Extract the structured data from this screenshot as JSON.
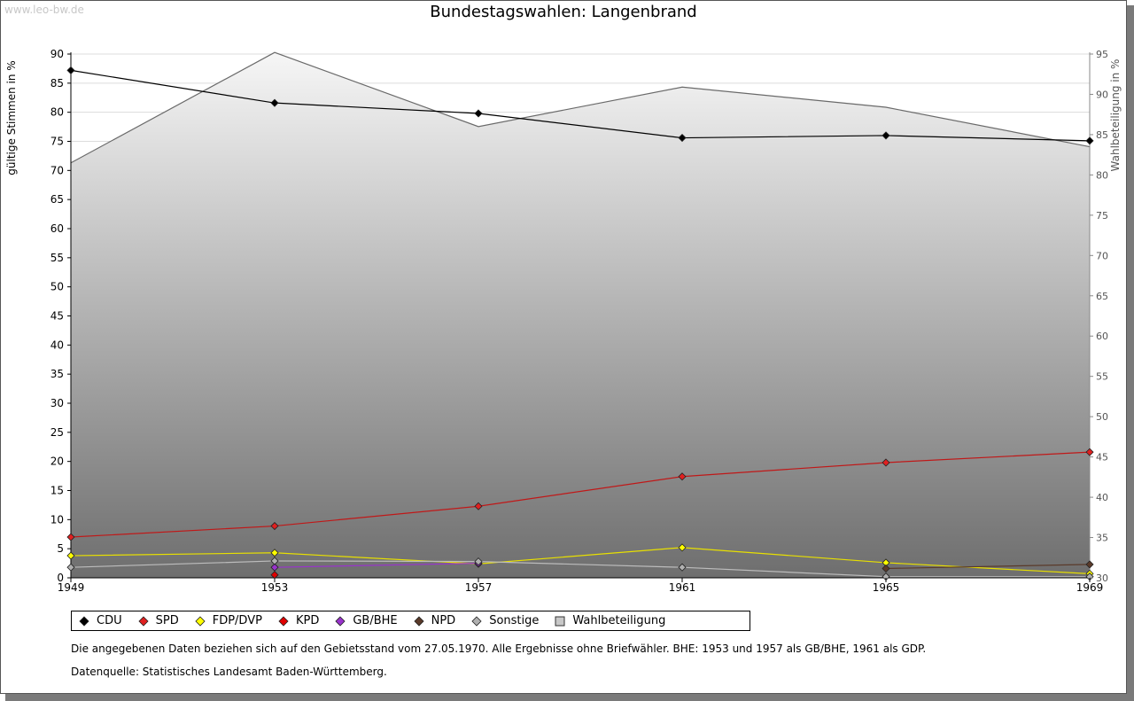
{
  "watermark": "www.leo-bw.de",
  "chart_data": {
    "type": "line",
    "title": "Bundestagswahlen: Langenbrand",
    "ylabel": "gültige Stimmen in %",
    "y2label": "Wahlbeteiligung in %",
    "categories": [
      "1949",
      "1953",
      "1957",
      "1961",
      "1965",
      "1969"
    ],
    "ylim": [
      0,
      90
    ],
    "y2lim": [
      30,
      95
    ],
    "yticks": [
      0,
      5,
      10,
      15,
      20,
      25,
      30,
      35,
      40,
      45,
      50,
      55,
      60,
      65,
      70,
      75,
      80,
      85,
      90
    ],
    "y2ticks": [
      30,
      35,
      40,
      45,
      50,
      55,
      60,
      65,
      70,
      75,
      80,
      85,
      90,
      95
    ],
    "series": [
      {
        "name": "CDU",
        "color": "#000000",
        "line": "#000000",
        "values": [
          87.2,
          81.6,
          79.8,
          75.6,
          76.0,
          75.1
        ]
      },
      {
        "name": "SPD",
        "color": "#e02020",
        "line": "#c01818",
        "values": [
          7.0,
          8.9,
          12.3,
          17.4,
          19.8,
          21.6
        ]
      },
      {
        "name": "FDP/DVP",
        "color": "#ffff00",
        "line": "#e8e000",
        "values": [
          3.8,
          4.3,
          2.4,
          5.2,
          2.6,
          0.7
        ]
      },
      {
        "name": "KPD",
        "color": "#e00000",
        "line": "#c00000",
        "values": [
          null,
          0.5,
          null,
          null,
          null,
          null
        ]
      },
      {
        "name": "GB/BHE",
        "color": "#9933cc",
        "line": "#9933cc",
        "values": [
          null,
          1.8,
          2.5,
          null,
          null,
          null
        ]
      },
      {
        "name": "NPD",
        "color": "#5a3a2a",
        "line": "#5a3a2a",
        "values": [
          null,
          null,
          null,
          null,
          1.6,
          2.3
        ]
      },
      {
        "name": "Sonstige",
        "color": "#b0b0b0",
        "line": "#bcbcbc",
        "values": [
          1.8,
          2.9,
          2.8,
          1.8,
          0.2,
          0.2
        ]
      }
    ],
    "turnout": {
      "name": "Wahlbeteiligung",
      "values": [
        81.5,
        95.2,
        86.0,
        90.9,
        88.4,
        83.5
      ]
    },
    "legend": [
      "CDU",
      "SPD",
      "FDP/DVP",
      "KPD",
      "GB/BHE",
      "NPD",
      "Sonstige",
      "Wahlbeteiligung"
    ]
  },
  "notes": {
    "line1": "Die angegebenen Daten beziehen sich auf den Gebietsstand vom 27.05.1970. Alle Ergebnisse ohne Briefwähler. BHE: 1953 und 1957 als GB/BHE, 1961 als GDP.",
    "line2": "Datenquelle: Statistisches Landesamt Baden-Württemberg."
  }
}
